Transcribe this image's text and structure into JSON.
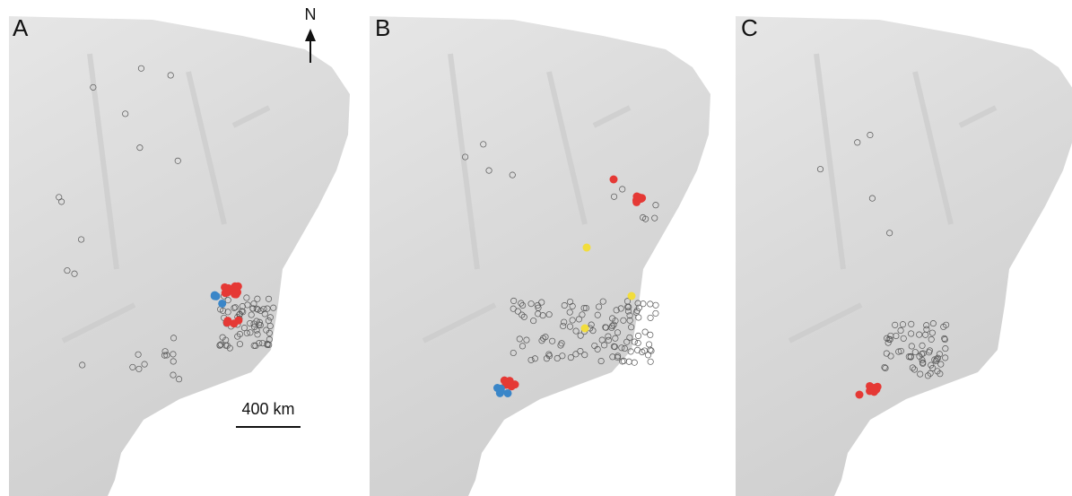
{
  "panels": [
    {
      "label": "A"
    },
    {
      "label": "B"
    },
    {
      "label": "C"
    }
  ],
  "north_arrow": {
    "label": "N"
  },
  "scale_bar": {
    "label": "400 km"
  }
}
